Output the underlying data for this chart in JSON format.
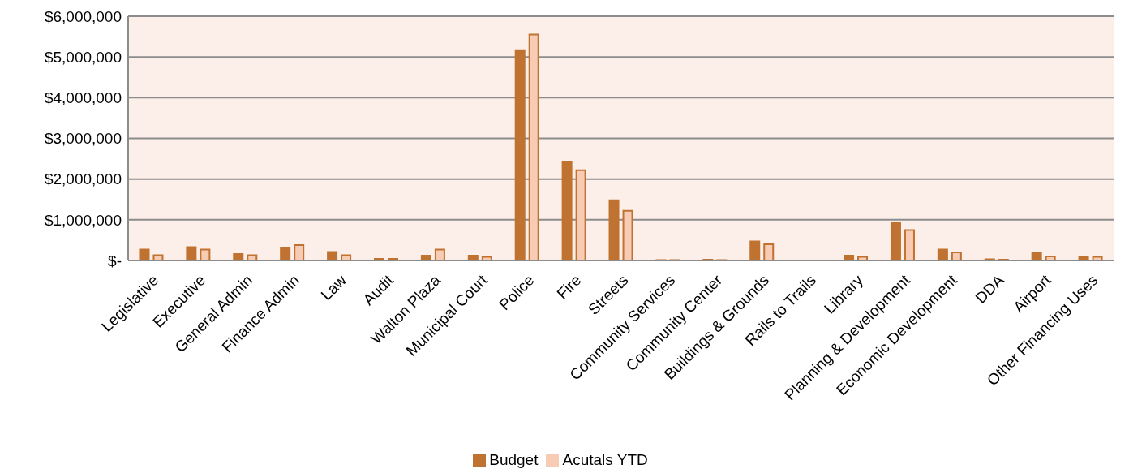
{
  "chart_data": {
    "type": "bar",
    "categories": [
      "Legislative",
      "Executive",
      "General Admin",
      "Finance Admin",
      "Law",
      "Audit",
      "Walton Plaza",
      "Municipal Court",
      "Police",
      "Fire",
      "Streets",
      "Community Services",
      "Community Center",
      "Buildings & Grounds",
      "Rails to Trails",
      "Library",
      "Planning & Development",
      "Economic Development",
      "DDA",
      "Airport",
      "Other Financing Uses"
    ],
    "series": [
      {
        "name": "Budget",
        "color": "#c07230",
        "values": [
          270000,
          330000,
          160000,
          310000,
          210000,
          40000,
          120000,
          120000,
          5150000,
          2420000,
          1480000,
          10000,
          20000,
          470000,
          0,
          120000,
          930000,
          270000,
          30000,
          200000,
          90000
        ]
      },
      {
        "name": "Acutals YTD",
        "color": "#f8cbb4",
        "values": [
          130000,
          270000,
          130000,
          380000,
          130000,
          40000,
          270000,
          90000,
          5550000,
          2220000,
          1220000,
          10000,
          10000,
          400000,
          0,
          90000,
          750000,
          200000,
          20000,
          100000,
          90000
        ]
      }
    ],
    "ylim": [
      0,
      6000000
    ],
    "yticks": [
      {
        "value": 0,
        "label": "$-"
      },
      {
        "value": 1000000,
        "label": "$1,000,000"
      },
      {
        "value": 2000000,
        "label": "$2,000,000"
      },
      {
        "value": 3000000,
        "label": "$3,000,000"
      },
      {
        "value": 4000000,
        "label": "$4,000,000"
      },
      {
        "value": 5000000,
        "label": "$5,000,000"
      },
      {
        "value": 6000000,
        "label": "$6,000,000"
      }
    ],
    "grid": "y",
    "legend": "bottom"
  }
}
